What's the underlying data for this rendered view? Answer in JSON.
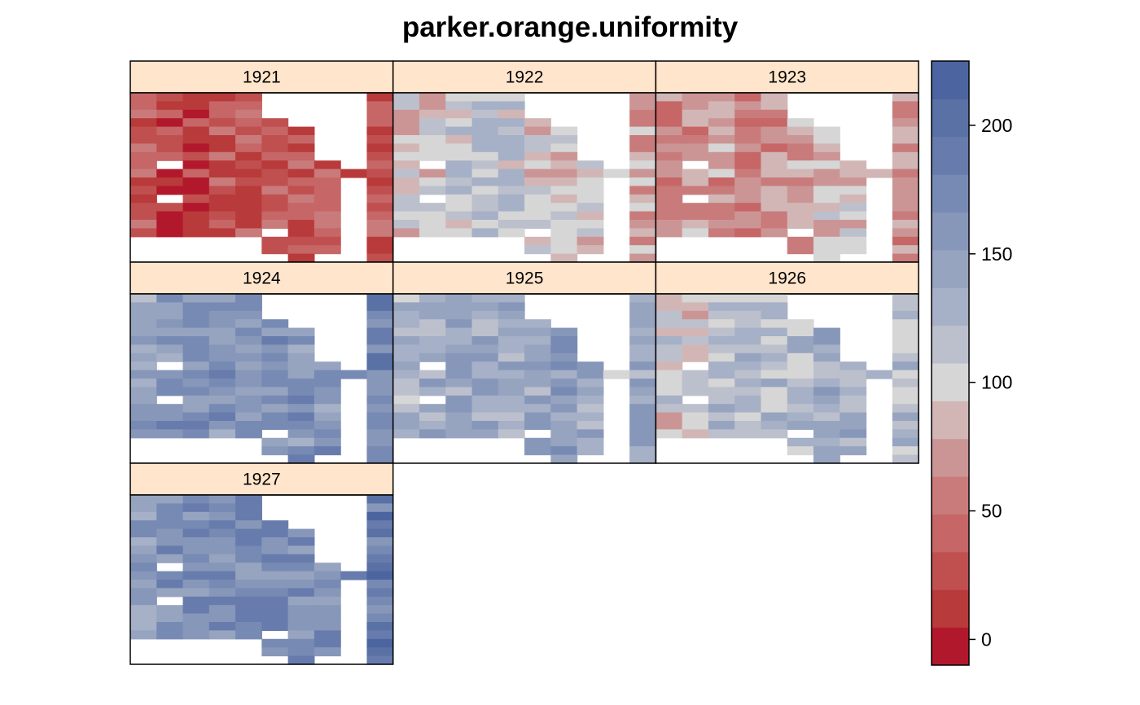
{
  "chart_data": {
    "type": "heatmap",
    "title": "parker.orange.uniformity",
    "panels": [
      {
        "label": "1921",
        "level": 30,
        "low_cols": [
          1,
          2
        ],
        "high_cols": []
      },
      {
        "label": "1922",
        "level": 95,
        "low_cols": [
          8,
          9
        ],
        "high_cols": [
          2,
          3,
          4
        ]
      },
      {
        "label": "1923",
        "level": 72,
        "low_cols": [
          0,
          3
        ],
        "high_cols": [
          6,
          7
        ]
      },
      {
        "label": "1924",
        "level": 160,
        "low_cols": [
          0
        ],
        "high_cols": [
          8,
          9
        ]
      },
      {
        "label": "1925",
        "level": 140,
        "low_cols": [
          0,
          8
        ],
        "high_cols": [
          6
        ]
      },
      {
        "label": "1926",
        "level": 118,
        "low_cols": [
          0,
          1
        ],
        "high_cols": [
          6,
          7
        ]
      },
      {
        "label": "1927",
        "level": 170,
        "low_cols": [
          0
        ],
        "high_cols": [
          8,
          9
        ]
      }
    ],
    "colorkey": {
      "min": -10,
      "max": 225,
      "ticks": [
        0,
        50,
        100,
        150,
        200
      ],
      "colors": [
        "#B2182B",
        "#B93A3A",
        "#C05050",
        "#C66666",
        "#C97B7B",
        "#CC9595",
        "#D2B6B6",
        "#D6D6D6",
        "#BCC0CD",
        "#A6B0C6",
        "#96A4C0",
        "#8797BA",
        "#778AB3",
        "#677CAC",
        "#5A71A6",
        "#4C65A0"
      ]
    },
    "grid": {
      "cols": 10,
      "rows": 20
    },
    "colors": {
      "strip": "#FFE5CC",
      "frame": "#000000"
    }
  }
}
